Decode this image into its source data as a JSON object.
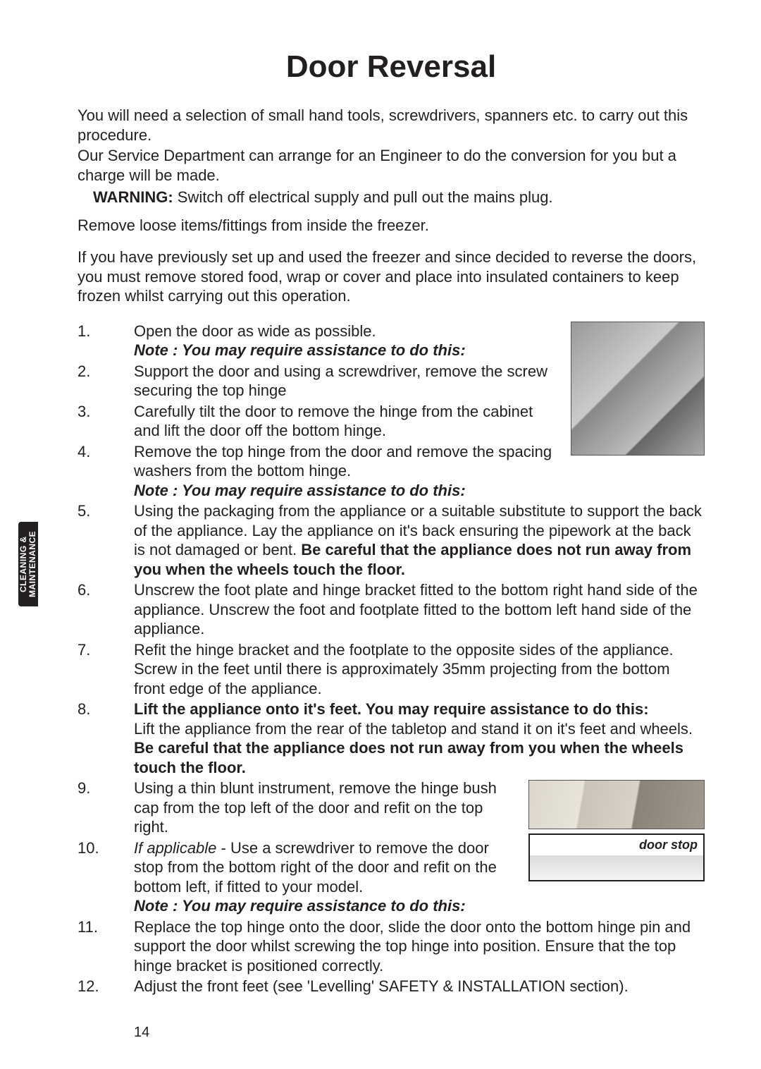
{
  "title": "Door Reversal",
  "intro": {
    "p1": "You will need a selection of small hand tools, screwdrivers, spanners etc. to carry out this procedure.",
    "p2": "Our Service Department can arrange for an Engineer to do the conversion for you but a charge will be made."
  },
  "warning": {
    "label": "WARNING:",
    "text": " Switch off electrical supply and pull out the mains plug."
  },
  "remove_line": "Remove loose items/fittings from inside the freezer.",
  "prev_para": "If you have previously set up and used the freezer and since decided to reverse the doors, you must remove stored food, wrap or cover and place into insulated containers to keep frozen whilst carrying out this operation.",
  "note_text": "Note : You may require assistance to do this:",
  "steps": {
    "s1": {
      "num": "1.",
      "text": "Open the door as wide as possible."
    },
    "s2": {
      "num": "2.",
      "text": "Support the door and using a screwdriver, remove the screw securing the top hinge"
    },
    "s3": {
      "num": "3.",
      "text": "Carefully tilt the door to remove the hinge from the cabinet and lift the door off the bottom hinge."
    },
    "s4": {
      "num": "4.",
      "text": "Remove the top hinge from the door and remove the spacing washers from the bottom hinge."
    },
    "s5": {
      "num": "5.",
      "part1": "Using the packaging from the appliance or a suitable substitute to support the back of the appliance. Lay the appliance on it's back ensuring the pipework at the back is not damaged or bent. ",
      "bold": "Be careful that the appliance does not run away from you when the wheels touch the floor."
    },
    "s6": {
      "num": "6.",
      "text": "Unscrew the foot plate and hinge bracket fitted to the bottom right hand side of the appliance. Unscrew the foot and footplate fitted to the bottom left hand side of the appliance."
    },
    "s7": {
      "num": "7.",
      "text": "Refit the hinge bracket and the footplate to the opposite sides of the appliance. Screw in the feet until there is approximately 35mm projecting from the bottom front edge of the appliance."
    },
    "s8": {
      "num": "8.",
      "bold1": "Lift the appliance onto it's feet. You may require assistance to do this:",
      "part2": "Lift the appliance from the rear of the tabletop and stand it on it's feet and wheels. ",
      "bold2": "Be careful that the appliance does not run away from you when the wheels touch the floor."
    },
    "s9": {
      "num": "9.",
      "text": "Using a thin blunt instrument, remove the hinge bush cap from the top left of the door and refit on the top right."
    },
    "s10": {
      "num": "10.",
      "italic": "If applicable",
      "text": " - Use a screwdriver to remove the door stop from the bottom right of the door and refit on the bottom left, if fitted to your model."
    },
    "s11": {
      "num": "11.",
      "text": "Replace the top hinge onto the door, slide the door onto the bottom hinge pin and support the door whilst screwing the top hinge into position.  Ensure that the top hinge bracket is positioned correctly."
    },
    "s12": {
      "num": "12.",
      "text": "Adjust the front feet (see 'Levelling' SAFETY & INSTALLATION section)."
    }
  },
  "fig2_label": "door stop",
  "side_tab": "CLEANING & MAINTENANCE",
  "page_number": "14"
}
